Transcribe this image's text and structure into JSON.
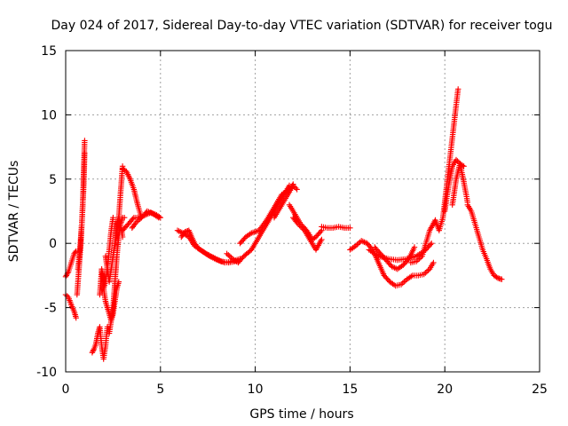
{
  "chart_data": {
    "type": "scatter",
    "title": "Day 024 of 2017, Sidereal Day-to-day VTEC variation (SDTVAR) for receiver togu",
    "xlabel": "GPS time / hours",
    "ylabel": "SDTVAR / TECUs",
    "xlim": [
      0,
      25
    ],
    "ylim": [
      -10,
      15
    ],
    "xticks": [
      0,
      5,
      10,
      15,
      20,
      25
    ],
    "yticks": [
      -10,
      -5,
      0,
      5,
      10,
      15
    ],
    "grid": true,
    "marker": "+",
    "series": [
      {
        "name": "SDTVAR",
        "color": "#ff0000",
        "segments": [
          {
            "x": [
              0.0,
              0.15,
              0.3,
              0.45,
              0.55
            ],
            "y": [
              -4.0,
              -4.2,
              -4.8,
              -5.3,
              -5.8
            ]
          },
          {
            "x": [
              0.0,
              0.15,
              0.3,
              0.45,
              0.55
            ],
            "y": [
              -2.6,
              -2.2,
              -1.5,
              -0.8,
              -0.6
            ]
          },
          {
            "x": [
              0.6,
              0.65,
              0.7,
              0.75,
              0.8,
              0.85,
              0.9,
              0.95,
              1.0
            ],
            "y": [
              -4.0,
              -3.0,
              -2.0,
              -1.0,
              0.0,
              1.5,
              3.0,
              5.5,
              8.0
            ]
          },
          {
            "x": [
              0.65,
              0.75,
              0.85,
              0.95,
              1.0
            ],
            "y": [
              -2.0,
              -0.5,
              1.5,
              4.5,
              7.0
            ]
          },
          {
            "x": [
              1.4,
              1.5,
              1.6,
              1.7,
              1.8,
              1.9,
              2.0,
              2.1,
              2.2
            ],
            "y": [
              -8.5,
              -8.2,
              -7.8,
              -7.0,
              -6.5,
              -8.0,
              -9.0,
              -8.0,
              -6.5
            ]
          },
          {
            "x": [
              1.8,
              1.85,
              1.9,
              1.95,
              2.0,
              2.1,
              2.2,
              2.3,
              2.4,
              2.5
            ],
            "y": [
              -4.0,
              -3.0,
              -2.0,
              -2.5,
              -3.5,
              -3.0,
              -2.0,
              -0.5,
              1.0,
              2.0
            ]
          },
          {
            "x": [
              2.0,
              2.1,
              2.2,
              2.3,
              2.4,
              2.5,
              2.6,
              2.7,
              2.8
            ],
            "y": [
              -3.5,
              -4.5,
              -5.0,
              -5.5,
              -6.0,
              -5.5,
              -4.5,
              -3.5,
              -3.0
            ]
          },
          {
            "x": [
              2.1,
              2.2,
              2.3,
              2.4,
              2.5,
              2.6,
              2.7,
              2.8,
              2.9,
              3.0
            ],
            "y": [
              -1.0,
              -2.0,
              -3.0,
              -2.0,
              -1.0,
              0.0,
              1.0,
              2.0,
              4.0,
              6.0
            ]
          },
          {
            "x": [
              2.3,
              2.4,
              2.5,
              2.6,
              2.7,
              2.8,
              2.9,
              3.0,
              3.1
            ],
            "y": [
              -7.0,
              -6.0,
              -5.0,
              -3.0,
              -1.0,
              0.5,
              1.5,
              2.0,
              2.0
            ]
          },
          {
            "x": [
              2.6,
              2.7,
              2.8,
              2.9,
              3.0
            ],
            "y": [
              0.0,
              1.5,
              2.0,
              1.5,
              0.5
            ]
          },
          {
            "x": [
              3.0,
              3.2,
              3.4,
              3.6,
              3.8,
              4.0
            ],
            "y": [
              5.8,
              5.6,
              5.0,
              4.2,
              3.0,
              2.0
            ]
          },
          {
            "x": [
              3.0,
              3.3,
              3.6,
              3.9,
              4.2,
              4.5,
              4.8,
              5.0
            ],
            "y": [
              1.0,
              1.5,
              2.0,
              2.0,
              2.2,
              2.4,
              2.2,
              2.0
            ]
          },
          {
            "x": [
              3.5,
              3.7,
              4.0,
              4.3,
              4.6,
              4.9
            ],
            "y": [
              1.2,
              1.6,
              2.0,
              2.5,
              2.3,
              2.0
            ]
          },
          {
            "x": [
              5.9,
              6.2,
              6.5,
              6.8,
              7.2,
              7.6,
              8.0,
              8.4,
              8.8,
              9.2
            ],
            "y": [
              1.0,
              0.8,
              0.5,
              -0.2,
              -0.6,
              -1.0,
              -1.3,
              -1.5,
              -1.4,
              -1.2
            ]
          },
          {
            "x": [
              6.1,
              6.3,
              6.5,
              6.8,
              7.0,
              7.4,
              7.8,
              8.2,
              8.6,
              9.0
            ],
            "y": [
              0.5,
              0.9,
              1.0,
              0.0,
              -0.4,
              -0.8,
              -1.1,
              -1.4,
              -1.5,
              -1.4
            ]
          },
          {
            "x": [
              8.5,
              8.8,
              9.1,
              9.4,
              9.8,
              10.2,
              10.6,
              11.0,
              11.4,
              11.8
            ],
            "y": [
              -0.8,
              -1.2,
              -1.5,
              -1.0,
              -0.5,
              0.5,
              1.5,
              2.5,
              3.5,
              4.5
            ]
          },
          {
            "x": [
              9.2,
              9.5,
              9.8,
              10.2,
              10.6,
              11.0,
              11.4,
              11.8,
              12.0
            ],
            "y": [
              0.0,
              0.5,
              0.8,
              1.0,
              1.8,
              2.8,
              3.8,
              4.2,
              4.6
            ]
          },
          {
            "x": [
              11.0,
              11.4,
              11.8,
              12.0,
              12.2
            ],
            "y": [
              2.0,
              3.0,
              4.0,
              4.5,
              4.2
            ]
          },
          {
            "x": [
              11.8,
              12.0,
              12.2,
              12.4,
              12.6,
              12.8,
              13.0,
              13.2,
              13.5
            ],
            "y": [
              3.0,
              2.5,
              2.0,
              1.5,
              1.2,
              0.8,
              0.3,
              0.5,
              1.0
            ]
          },
          {
            "x": [
              12.0,
              12.2,
              12.4,
              12.6,
              12.8,
              13.0,
              13.2,
              13.5
            ],
            "y": [
              2.0,
              1.6,
              1.3,
              1.0,
              0.5,
              0.0,
              -0.5,
              0.3
            ]
          },
          {
            "x": [
              13.5,
              13.8,
              14.1,
              14.4,
              14.7,
              15.0
            ],
            "y": [
              1.3,
              1.2,
              1.2,
              1.3,
              1.2,
              1.2
            ]
          },
          {
            "x": [
              15.0,
              15.3,
              15.6,
              15.9,
              16.2,
              16.5,
              16.8,
              17.1,
              17.4,
              17.7,
              18.0,
              18.3,
              18.6,
              18.9,
              19.2,
              19.4
            ],
            "y": [
              -0.5,
              -0.2,
              0.2,
              0.0,
              -0.5,
              -1.5,
              -2.5,
              -3.0,
              -3.3,
              -3.2,
              -2.8,
              -2.5,
              -2.5,
              -2.4,
              -2.0,
              -1.5
            ]
          },
          {
            "x": [
              16.0,
              16.5,
              17.0,
              17.5,
              18.0,
              18.5,
              19.0,
              19.3
            ],
            "y": [
              -0.5,
              -1.0,
              -1.2,
              -1.3,
              -1.2,
              -1.0,
              -0.5,
              0.0
            ]
          },
          {
            "x": [
              16.3,
              16.6,
              16.9,
              17.2,
              17.5,
              17.8,
              18.1,
              18.4
            ],
            "y": [
              -0.3,
              -0.8,
              -1.3,
              -1.8,
              -2.0,
              -1.7,
              -1.2,
              -0.3
            ]
          },
          {
            "x": [
              18.2,
              18.5,
              18.8,
              19.0,
              19.2,
              19.5
            ],
            "y": [
              -1.5,
              -1.4,
              -1.0,
              0.0,
              1.0,
              1.8
            ]
          },
          {
            "x": [
              19.5,
              19.7,
              19.9,
              20.1,
              20.3,
              20.5,
              20.7
            ],
            "y": [
              1.8,
              1.0,
              2.0,
              4.5,
              7.0,
              9.5,
              12.0
            ]
          },
          {
            "x": [
              20.0,
              20.2,
              20.4,
              20.6,
              20.8,
              21.0,
              21.2
            ],
            "y": [
              2.5,
              4.5,
              6.0,
              6.5,
              6.2,
              4.8,
              3.2
            ]
          },
          {
            "x": [
              20.4,
              20.6,
              20.8,
              21.0
            ],
            "y": [
              3.0,
              5.0,
              6.2,
              6.0
            ]
          },
          {
            "x": [
              21.2,
              21.4,
              21.6,
              21.8,
              22.0,
              22.2,
              22.4,
              22.6,
              22.8,
              23.0
            ],
            "y": [
              3.0,
              2.5,
              1.5,
              0.5,
              -0.5,
              -1.2,
              -2.0,
              -2.5,
              -2.7,
              -2.8
            ]
          }
        ]
      }
    ]
  }
}
